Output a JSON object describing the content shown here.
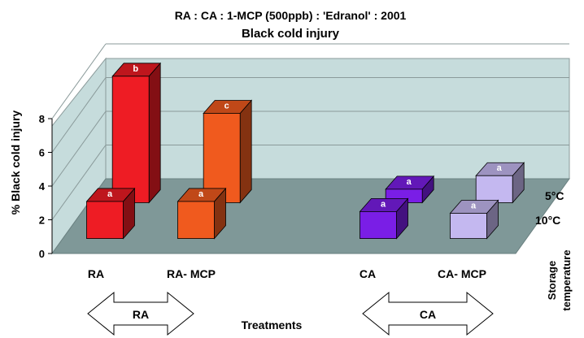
{
  "chart_data": {
    "type": "bar",
    "title": "RA : CA : 1-MCP (500ppb) : 'Edranol' : 2001",
    "subtitle": "Black cold injury",
    "ylabel": "% Black cold injury",
    "xlabel": "Treatments",
    "depth_axis_label": [
      "Storage",
      "temperature"
    ],
    "ylim": [
      0,
      8
    ],
    "yticks": [
      0,
      2,
      4,
      6,
      8
    ],
    "categories": [
      "RA",
      "RA- MCP",
      "CA",
      "CA- MCP"
    ],
    "series": [
      {
        "name": "10°C",
        "values": [
          2.2,
          2.2,
          1.6,
          1.5
        ],
        "letters": [
          "a",
          "a",
          "a",
          "a"
        ]
      },
      {
        "name": "5°C",
        "values": [
          7.5,
          5.3,
          0.8,
          1.6
        ],
        "letters": [
          "b",
          "c",
          "a",
          "a"
        ]
      }
    ],
    "colors": {
      "RA": "#ee1c24",
      "RA- MCP": "#f05a1e",
      "CA": "#7a1ee6",
      "CA- MCP": "#c4b8f0"
    },
    "group_arrows": [
      "RA",
      "CA"
    ],
    "wall_color": "#c6dcdc",
    "floor_color": "#7f9898"
  }
}
